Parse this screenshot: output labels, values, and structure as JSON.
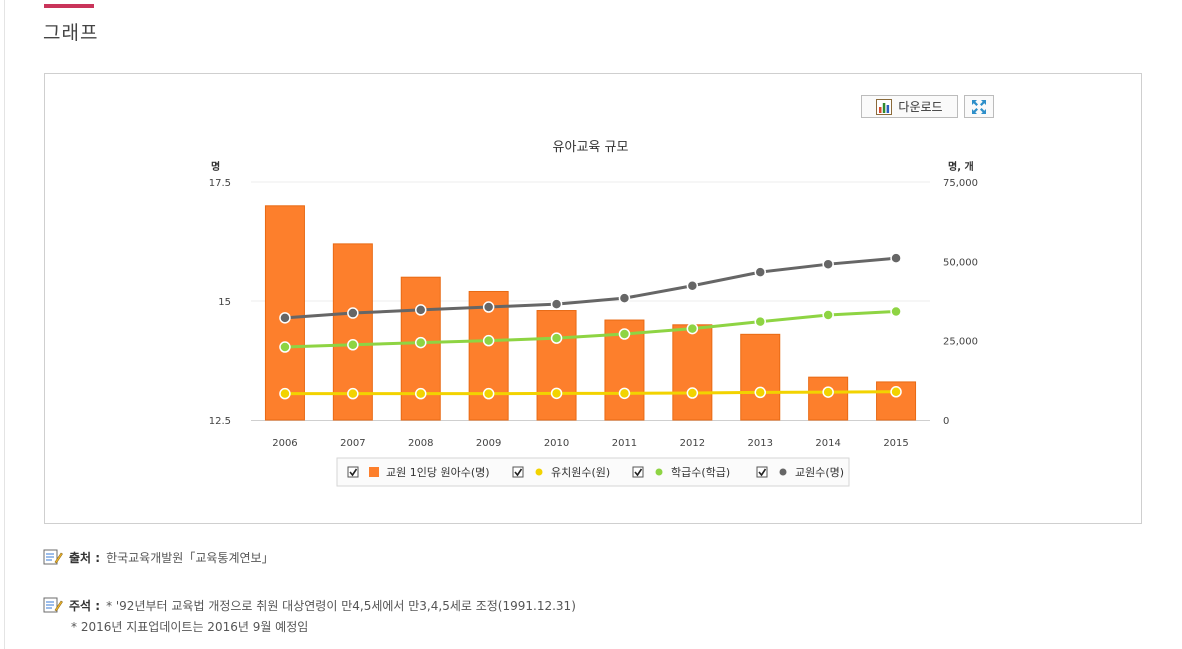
{
  "section_title": "그래프",
  "toolbar": {
    "download_label": "다운로드"
  },
  "chart_data": {
    "type": "bar",
    "title": "유아교육 규모",
    "categories": [
      "2006",
      "2007",
      "2008",
      "2009",
      "2010",
      "2011",
      "2012",
      "2013",
      "2014",
      "2015"
    ],
    "y_left": {
      "unit_label": "명",
      "min": 12.5,
      "max": 17.5,
      "ticks": [
        "12.5",
        "15",
        "17.5"
      ]
    },
    "y_right": {
      "unit_label": "명, 개",
      "min": 0,
      "max": 75000,
      "ticks": [
        "0",
        "25,000",
        "50,000",
        "75,000"
      ]
    },
    "series": [
      {
        "name": "교원 1인당 원아수(명)",
        "kind": "bar",
        "axis": "left",
        "color": "#fd7f2c",
        "values": [
          17.0,
          16.2,
          15.5,
          15.2,
          14.8,
          14.6,
          14.5,
          14.3,
          13.4,
          13.3
        ]
      },
      {
        "name": "유치원수(원)",
        "kind": "line",
        "axis": "right",
        "color": "#f2d300",
        "values": [
          8300,
          8300,
          8300,
          8300,
          8400,
          8400,
          8500,
          8700,
          8800,
          8900
        ]
      },
      {
        "name": "학급수(학급)",
        "kind": "line",
        "axis": "right",
        "color": "#8ed443",
        "values": [
          23000,
          23700,
          24400,
          25000,
          25800,
          27100,
          28800,
          31000,
          33100,
          34200
        ]
      },
      {
        "name": "교원수(명)",
        "kind": "line",
        "axis": "right",
        "color": "#666666",
        "values": [
          32200,
          33700,
          34700,
          35600,
          36500,
          38400,
          42300,
          46600,
          49100,
          51000
        ]
      }
    ],
    "legend_position": "bottom",
    "grid": true
  },
  "notes": {
    "source_label": "출처 :",
    "source_text": "한국교육개발원「교육통계연보」",
    "remark_label": "주석 :",
    "remark_line1": "* '92년부터 교육법 개정으로 취원 대상연령이 만4,5세에서 만3,4,5세로 조정(1991.12.31)",
    "remark_line2": "* 2016년 지표업데이트는 2016년 9월 예정임"
  }
}
